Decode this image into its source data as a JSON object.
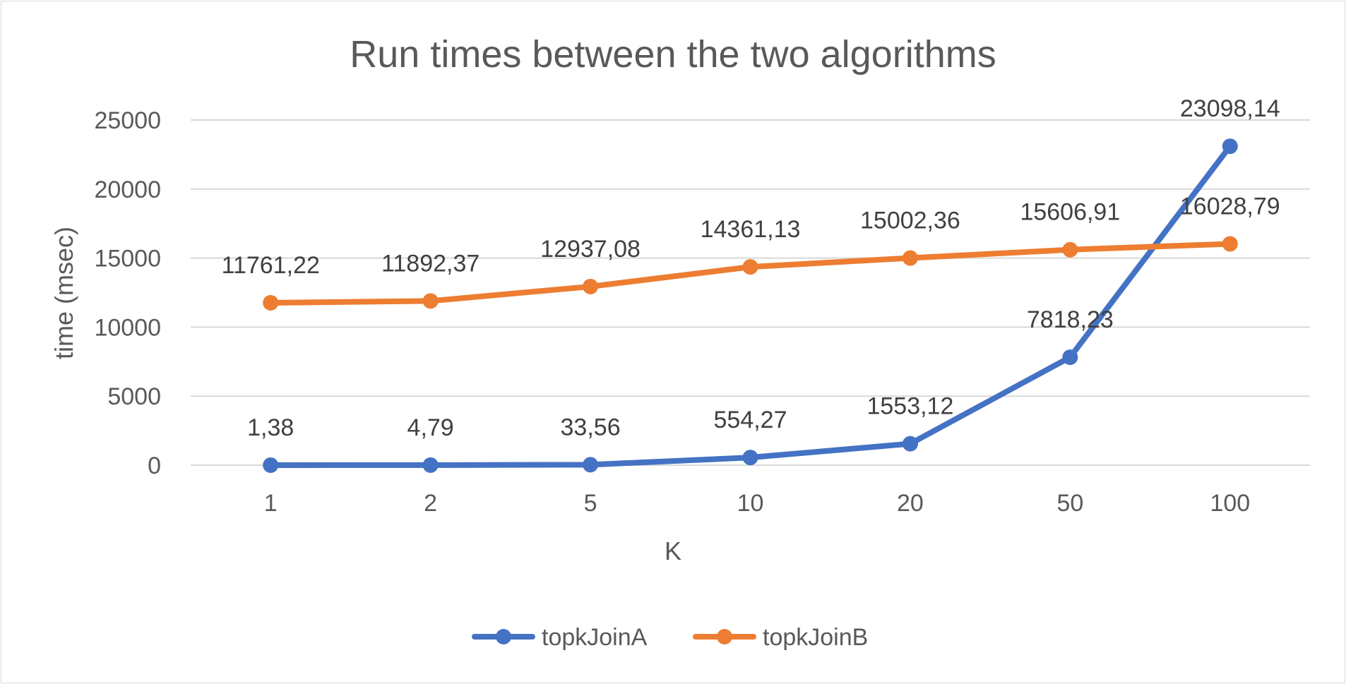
{
  "chart_data": {
    "type": "line",
    "title": "Run times between the two algorithms",
    "xlabel": "K",
    "ylabel": "time (msec)",
    "categories": [
      "1",
      "2",
      "5",
      "10",
      "20",
      "50",
      "100"
    ],
    "y_ticks": [
      "0",
      "5000",
      "10000",
      "15000",
      "20000",
      "25000"
    ],
    "ylim": [
      0,
      25000
    ],
    "grid": "horizontal",
    "legend_position": "bottom",
    "series": [
      {
        "name": "topkJoinA",
        "color": "#4472C4",
        "values": [
          1.38,
          4.79,
          33.56,
          554.27,
          1553.12,
          7818.23,
          23098.14
        ],
        "labels": [
          "1,38",
          "4,79",
          "33,56",
          "554,27",
          "1553,12",
          "7818,23",
          "23098,14"
        ]
      },
      {
        "name": "topkJoinB",
        "color": "#ED7D31",
        "values": [
          11761.22,
          11892.37,
          12937.08,
          14361.13,
          15002.36,
          15606.91,
          16028.79
        ],
        "labels": [
          "11761,22",
          "11892,37",
          "12937,08",
          "14361,13",
          "15002,36",
          "15606,91",
          "16028,79"
        ]
      }
    ]
  }
}
